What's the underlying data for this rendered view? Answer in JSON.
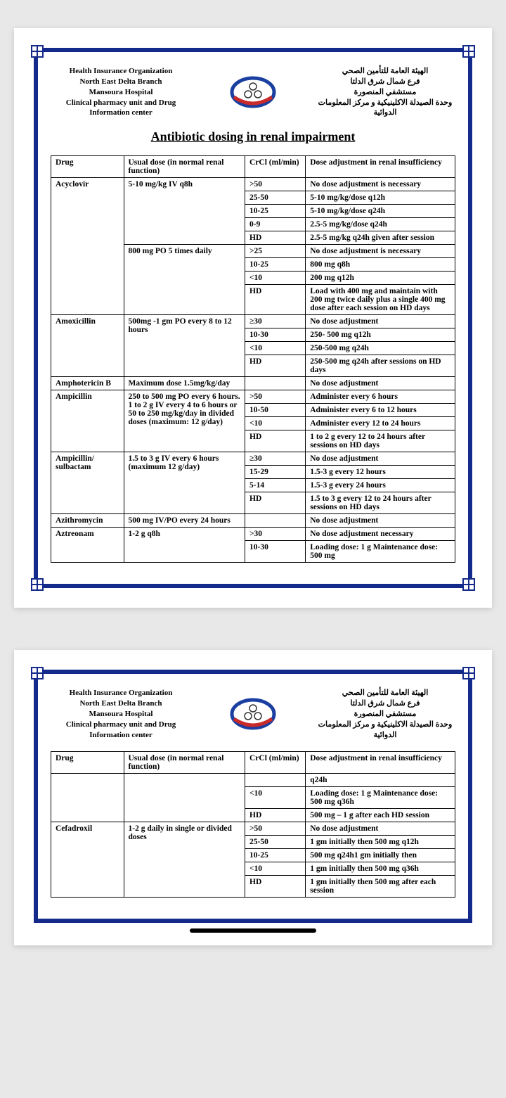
{
  "colors": {
    "page_bg": "#e8e8e8",
    "paper_bg": "#ffffff",
    "frame_border": "#142a8a",
    "text": "#000000",
    "table_border": "#000000",
    "logo_blue": "#1a3fa0",
    "logo_red": "#c92a2a",
    "logo_inner": "#ffffff"
  },
  "typography": {
    "body_font": "Times New Roman",
    "header_fontsize_pt": 11,
    "title_fontsize_pt": 18,
    "table_fontsize_pt": 11.5,
    "header_weight": "bold",
    "title_weight": "bold",
    "title_underline": true
  },
  "header": {
    "english_lines": [
      "Health Insurance Organization",
      "North East Delta Branch",
      "Mansoura Hospital",
      "Clinical pharmacy unit and Drug",
      "Information center"
    ],
    "arabic_lines": [
      "الهيئة العامة للتأمين الصحي",
      "فرع شمال شرق الدلتا",
      "مستشفي المنصورة",
      "وحدة الصيدلة الاكلينيكية و مركز المعلومات",
      "الدوائية"
    ]
  },
  "title": "Antibiotic dosing in renal impairment",
  "table": {
    "columns": [
      "Drug",
      "Usual dose (in normal renal function)",
      "CrCl (ml/min)",
      "Dose adjustment in renal insufficiency"
    ],
    "col_widths_pct": [
      18,
      30,
      15,
      37
    ]
  },
  "page1_rows": [
    {
      "drug": "Acyclovir",
      "drug_rowspan": 9,
      "dose": "5-10 mg/kg IV q8h",
      "dose_rowspan": 5,
      "crcl": ">50",
      "adj": "No dose adjustment is necessary"
    },
    {
      "crcl": "25-50",
      "adj": "5-10 mg/kg/dose q12h"
    },
    {
      "crcl": "10-25",
      "adj": "5-10 mg/kg/dose q24h"
    },
    {
      "crcl": "0-9",
      "adj": "2.5-5 mg/kg/dose q24h"
    },
    {
      "crcl": "HD",
      "adj": "2.5-5 mg/kg q24h given after session"
    },
    {
      "dose": "800 mg PO 5 times daily",
      "dose_rowspan": 4,
      "crcl": ">25",
      "adj": "No dose adjustment is necessary"
    },
    {
      "crcl": "10-25",
      "adj": "800 mg q8h"
    },
    {
      "crcl": "<10",
      "adj": "200 mg q12h"
    },
    {
      "crcl": "HD",
      "adj": "Load with 400 mg and maintain with 200 mg twice daily plus a single 400 mg dose after each session on HD days"
    },
    {
      "drug": "Amoxicillin",
      "drug_rowspan": 4,
      "dose": "500mg -1 gm PO every 8 to 12 hours",
      "dose_rowspan": 4,
      "crcl": "≥30",
      "adj": "No dose adjustment"
    },
    {
      "crcl": "10-30",
      "adj": "250- 500 mg q12h"
    },
    {
      "crcl": "<10",
      "adj": "250-500 mg q24h"
    },
    {
      "crcl": "HD",
      "adj": "250-500 mg q24h after sessions on HD days"
    },
    {
      "drug": "Amphotericin B",
      "dose": "Maximum dose 1.5mg/kg/day",
      "crcl": "",
      "adj": "No dose adjustment"
    },
    {
      "drug": "Ampicillin",
      "drug_rowspan": 4,
      "dose": "250 to 500 mg PO every 6 hours.\n1 to 2 g IV every 4 to 6 hours or 50 to 250 mg/kg/day in divided doses (maximum: 12 g/day)",
      "dose_rowspan": 4,
      "crcl": ">50",
      "adj": "Administer every 6 hours"
    },
    {
      "crcl": "10-50",
      "adj": "Administer every 6 to 12 hours"
    },
    {
      "crcl": "<10",
      "adj": "Administer every 12 to 24 hours"
    },
    {
      "crcl": "HD",
      "adj": "1 to 2 g every 12 to 24 hours after sessions on HD days"
    },
    {
      "drug": "Ampicillin/ sulbactam",
      "drug_rowspan": 4,
      "dose": "1.5 to 3 g IV every 6 hours (maximum 12 g/day)",
      "dose_rowspan": 4,
      "crcl": "≥30",
      "adj": "No dose adjustment"
    },
    {
      "crcl": "15-29",
      "adj": "1.5-3 g every 12 hours"
    },
    {
      "crcl": "5-14",
      "adj": "1.5-3 g every 24 hours"
    },
    {
      "crcl": "HD",
      "adj": "1.5 to 3 g every 12 to 24 hours after sessions on HD days"
    },
    {
      "drug": "Azithromycin",
      "dose": "500 mg IV/PO every 24 hours",
      "crcl": "",
      "adj": "No dose adjustment"
    },
    {
      "drug": "Aztreonam",
      "drug_rowspan": 2,
      "dose": "1-2 g q8h",
      "dose_rowspan": 2,
      "crcl": ">30",
      "adj": "No dose adjustment necessary"
    },
    {
      "crcl": "10-30",
      "adj": "Loading dose: 1 g\nMaintenance dose: 500 mg"
    }
  ],
  "page2_rows": [
    {
      "drug": "",
      "drug_rowspan": 3,
      "dose": "",
      "dose_rowspan": 3,
      "crcl": "",
      "adj": "q24h"
    },
    {
      "crcl": "<10",
      "adj": "Loading dose: 1 g\nMaintenance dose: 500 mg q36h"
    },
    {
      "crcl": "HD",
      "adj": "500 mg – 1 g after each HD session"
    },
    {
      "drug": "Cefadroxil",
      "drug_rowspan": 5,
      "dose": "1-2 g daily in single or divided doses",
      "dose_rowspan": 5,
      "crcl": ">50",
      "adj": "No dose adjustment"
    },
    {
      "crcl": "25-50",
      "adj": "1 gm initially then 500 mg q12h"
    },
    {
      "crcl": "10-25",
      "adj": "500 mg q24h1 gm initially then"
    },
    {
      "crcl": "<10",
      "adj": "1 gm initially then 500 mg q36h"
    },
    {
      "crcl": "HD",
      "adj": "1 gm initially then 500 mg after each session"
    }
  ]
}
